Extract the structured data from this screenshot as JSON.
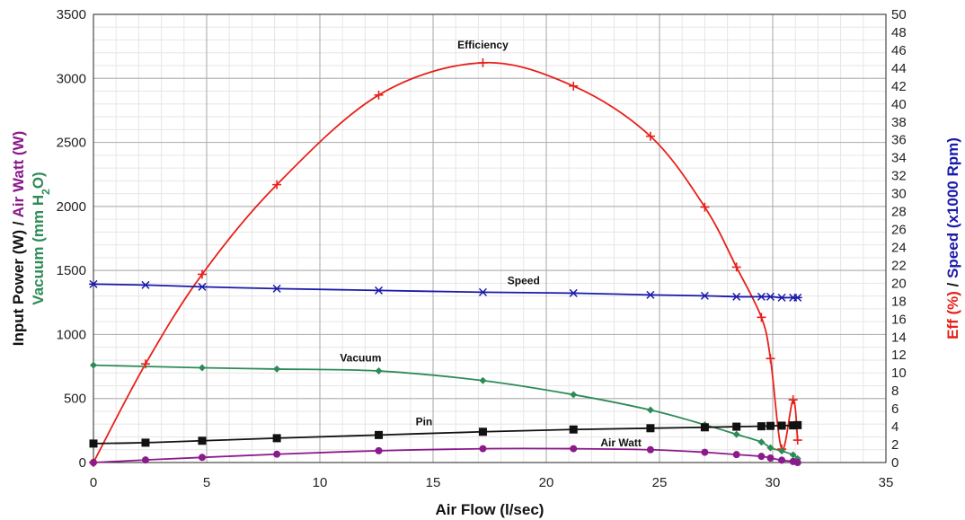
{
  "chart_data": {
    "type": "line",
    "xlabel": "Air Flow (l/sec)",
    "xlim": [
      0,
      35
    ],
    "x_ticks": [
      0,
      5,
      10,
      15,
      20,
      25,
      30,
      35
    ],
    "ylim_left": [
      0,
      3500
    ],
    "y_left_ticks": [
      0,
      500,
      1000,
      1500,
      2000,
      2500,
      3000,
      3500
    ],
    "ylim_right": [
      0,
      50
    ],
    "y_right_ticks": [
      0,
      2,
      4,
      6,
      8,
      10,
      12,
      14,
      16,
      18,
      20,
      22,
      24,
      26,
      28,
      30,
      32,
      34,
      36,
      38,
      40,
      42,
      44,
      46,
      48,
      50
    ],
    "ylabel_left": {
      "line1": [
        {
          "text": "Input Power (W) / ",
          "color": "#111111"
        },
        {
          "text": "Air Watt (W)",
          "color": "#8b1a8b"
        }
      ],
      "line2": [
        {
          "text": "Vacuum (mm H",
          "color": "#2e8b57"
        },
        {
          "text": "2",
          "color": "#2e8b57",
          "sub": true
        },
        {
          "text": "O)",
          "color": "#2e8b57"
        }
      ]
    },
    "ylabel_right": [
      {
        "text": "Eff (%)",
        "color": "#e8201a"
      },
      {
        "text": " / ",
        "color": "#111111"
      },
      {
        "text": "Speed (x1000 Rpm)",
        "color": "#1a1aaa"
      }
    ],
    "grid": true,
    "series": [
      {
        "name": "Efficiency",
        "axis": "right",
        "color": "#e8201a",
        "marker": "plus",
        "x": [
          0,
          2.3,
          4.8,
          8.1,
          12.6,
          17.2,
          21.2,
          24.6,
          27.0,
          28.4,
          29.5,
          29.9,
          30.4,
          30.9,
          31.1
        ],
        "y": [
          0,
          11.0,
          21.0,
          31.0,
          41.0,
          44.6,
          42.0,
          36.4,
          28.5,
          21.8,
          16.2,
          11.6,
          1.5,
          7.0,
          2.5
        ]
      },
      {
        "name": "Speed",
        "axis": "right",
        "color": "#1a1aaa",
        "marker": "asterisk",
        "x": [
          0,
          2.3,
          4.8,
          8.1,
          12.6,
          17.2,
          21.2,
          24.6,
          27.0,
          28.4,
          29.5,
          29.9,
          30.4,
          30.9,
          31.1
        ],
        "y": [
          19.9,
          19.8,
          19.6,
          19.4,
          19.2,
          19.0,
          18.9,
          18.7,
          18.6,
          18.5,
          18.5,
          18.5,
          18.4,
          18.4,
          18.4
        ]
      },
      {
        "name": "Vacuum",
        "axis": "left",
        "color": "#2e8b57",
        "marker": "diamond",
        "x": [
          0,
          4.8,
          8.1,
          12.6,
          17.2,
          21.2,
          24.6,
          27.0,
          28.4,
          29.5,
          29.9,
          30.4,
          30.9,
          31.1
        ],
        "y": [
          760,
          740,
          730,
          715,
          640,
          530,
          410,
          295,
          220,
          160,
          115,
          90,
          60,
          30
        ]
      },
      {
        "name": "Pin",
        "axis": "left",
        "color": "#111111",
        "marker": "square",
        "x": [
          0,
          2.3,
          4.8,
          8.1,
          12.6,
          17.2,
          21.2,
          24.6,
          27.0,
          28.4,
          29.5,
          29.9,
          30.4,
          30.9,
          31.1
        ],
        "y": [
          148,
          155,
          170,
          190,
          215,
          240,
          258,
          268,
          275,
          280,
          283,
          286,
          288,
          290,
          292
        ]
      },
      {
        "name": "Air Watt",
        "axis": "left",
        "color": "#8b1a8b",
        "marker": "circle",
        "x": [
          0,
          2.3,
          4.8,
          8.1,
          12.6,
          17.2,
          21.2,
          24.6,
          27.0,
          28.4,
          29.5,
          29.9,
          30.4,
          30.9,
          31.1
        ],
        "y": [
          0,
          20,
          40,
          65,
          92,
          108,
          108,
          100,
          80,
          62,
          48,
          35,
          18,
          8,
          0
        ]
      }
    ],
    "annotations": [
      {
        "text": "Efficiency",
        "x": 17.2,
        "y": 46.2,
        "axis": "right"
      },
      {
        "text": "Speed",
        "x": 19.0,
        "y": 19.9,
        "axis": "right"
      },
      {
        "text": "Vacuum",
        "x": 11.8,
        "y": 790,
        "axis": "left"
      },
      {
        "text": "Pin",
        "x": 14.6,
        "y": 290,
        "axis": "left"
      },
      {
        "text": "Air Watt",
        "x": 23.3,
        "y": 125,
        "axis": "left"
      }
    ]
  }
}
